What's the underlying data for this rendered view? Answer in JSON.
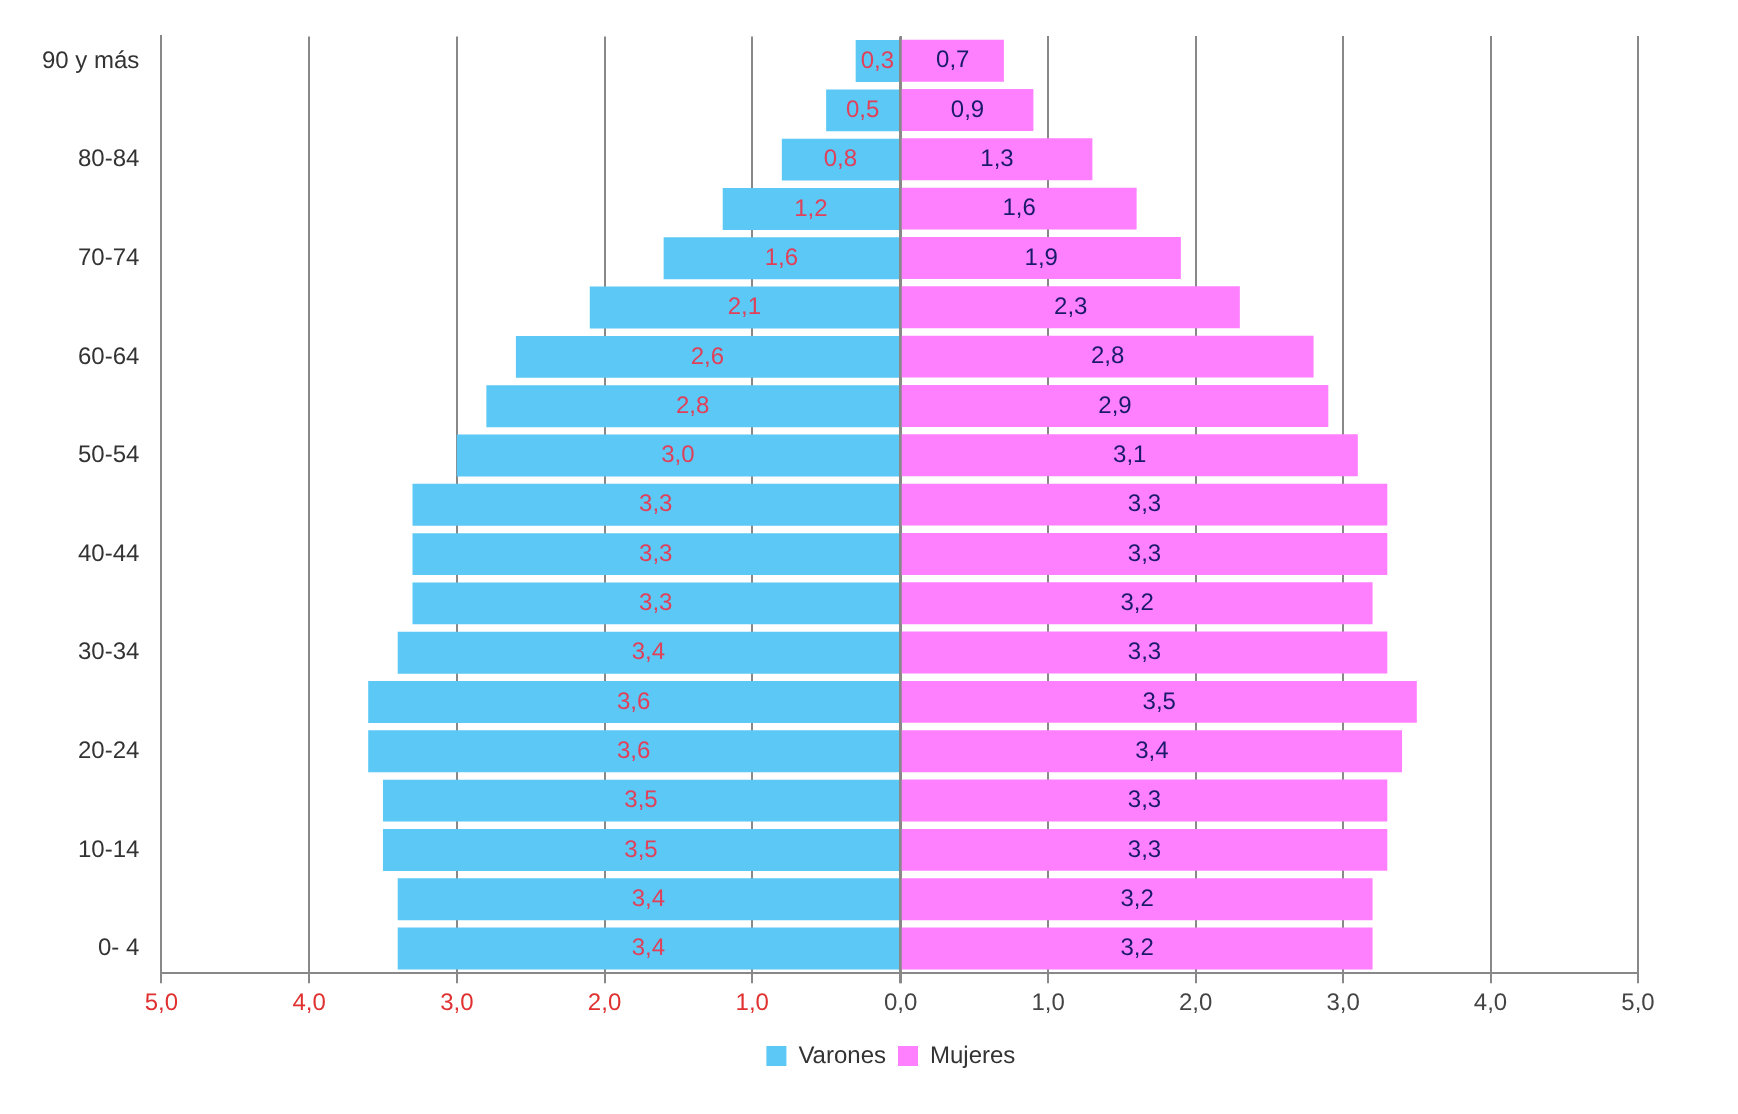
{
  "chart_data": [
    {
      "type": "bar",
      "orientation": "horizontal",
      "categories": [
        "90 y más",
        null,
        "80-84",
        null,
        "70-74",
        null,
        "60-64",
        null,
        "50-54",
        null,
        "40-44",
        null,
        "30-34",
        null,
        "20-24",
        null,
        "10-14",
        null,
        "0- 4"
      ],
      "series": [
        {
          "name": "Varones",
          "color": "#5bc8f5",
          "values": [
            0.3,
            0.5,
            0.8,
            1.2,
            1.6,
            2.1,
            2.6,
            2.8,
            3.0,
            3.3,
            3.3,
            3.3,
            3.4,
            3.6,
            3.6,
            3.5,
            3.5,
            3.4,
            3.4
          ],
          "value_labels": [
            "0,3",
            "0,5",
            "0,8",
            "1,2",
            "1,6",
            "2,1",
            "2,6",
            "2,8",
            "3,0",
            "3,3",
            "3,3",
            "3,3",
            "3,4",
            "3,6",
            "3,6",
            "3,5",
            "3,5",
            "3,4",
            "3,4"
          ]
        }
      ],
      "xlim": [
        5,
        0
      ],
      "xticks": [
        {
          "value": 5,
          "label": "5,0"
        },
        {
          "value": 4,
          "label": "4,0"
        },
        {
          "value": 3,
          "label": "3,0"
        },
        {
          "value": 2,
          "label": "2,0"
        },
        {
          "value": 1,
          "label": "1,0"
        },
        {
          "value": 0,
          "label": null
        }
      ],
      "grid": "x",
      "legend": "bottom right"
    },
    {
      "type": "bar",
      "orientation": "horizontal",
      "categories": [
        null,
        null,
        null,
        null,
        null,
        null,
        null,
        null,
        null,
        null,
        null,
        null,
        null,
        null,
        null,
        null,
        null,
        null,
        null
      ],
      "series": [
        {
          "name": "Mujeres",
          "color": "#ff80ff",
          "values": [
            0.7,
            0.9,
            1.3,
            1.6,
            1.9,
            2.3,
            2.8,
            2.9,
            3.1,
            3.3,
            3.3,
            3.2,
            3.3,
            3.5,
            3.4,
            3.3,
            3.3,
            3.2,
            3.2
          ],
          "value_labels": [
            "0,7",
            "0,9",
            "1,3",
            "1,6",
            "1,9",
            "2,3",
            "2,8",
            "2,9",
            "3,1",
            "3,3",
            "3,3",
            "3,2",
            "3,3",
            "3,5",
            "3,4",
            "3,3",
            "3,3",
            "3,2",
            "3,2"
          ]
        }
      ],
      "xlim": [
        0,
        5
      ],
      "xticks": [
        {
          "value": 0,
          "label": "0,0"
        },
        {
          "value": 1,
          "label": "1,0"
        },
        {
          "value": 2,
          "label": "2,0"
        },
        {
          "value": 3,
          "label": "3,0"
        },
        {
          "value": 4,
          "label": "4,0"
        },
        {
          "value": 5,
          "label": "5,0"
        }
      ],
      "grid": "x",
      "legend": "bottom left",
      "tick_labels": "x"
    }
  ]
}
